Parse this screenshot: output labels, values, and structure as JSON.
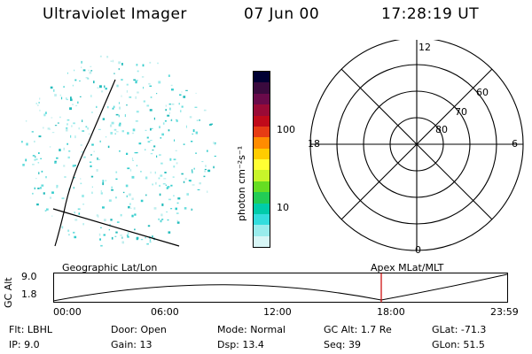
{
  "header": {
    "instrument": "Ultraviolet Imager",
    "date": "07 Jun 00",
    "time": "17:28:19 UT"
  },
  "colorbar": {
    "unit_label": "photon cm⁻²s⁻¹",
    "tick_labels": [
      "100",
      "10"
    ],
    "colors": [
      "#000033",
      "#3a0a3e",
      "#6a0a4a",
      "#9a0a36",
      "#c00a1a",
      "#e63c14",
      "#ff8c00",
      "#ffcc00",
      "#ffff33",
      "#c8f52a",
      "#66dd22",
      "#22cc55",
      "#00ccaa",
      "#33dddd",
      "#99ecec",
      "#d8f6f6"
    ]
  },
  "polar_grid": {
    "mlt_labels": {
      "top": "12",
      "left": "18",
      "right": "6",
      "bottom": "0"
    },
    "lat_labels": [
      "60",
      "70",
      "80"
    ]
  },
  "timeline": {
    "left_label": "Geographic Lat/Lon",
    "right_label": "Apex MLat/MLT",
    "y_axis_label": "GC Alt",
    "y_ticks": [
      "9.0",
      "1.8"
    ],
    "x_ticks": [
      "00:00",
      "06:00",
      "12:00",
      "18:00",
      "23:59"
    ],
    "marker_color": "#cc0000"
  },
  "info": {
    "row1": [
      {
        "key": "Flt:",
        "value": "LBHL"
      },
      {
        "key": "Door:",
        "value": "Open"
      },
      {
        "key": "Mode:",
        "value": "Normal"
      },
      {
        "key": "GC Alt:",
        "value": "1.7 Re"
      },
      {
        "key": "GLat:",
        "value": "-71.3"
      }
    ],
    "row2": [
      {
        "key": "IP:",
        "value": "9.0"
      },
      {
        "key": "Gain:",
        "value": "13"
      },
      {
        "key": "Dsp:",
        "value": "13.4"
      },
      {
        "key": "Seq:",
        "value": "39"
      },
      {
        "key": "GLon:",
        "value": "51.5"
      }
    ]
  }
}
